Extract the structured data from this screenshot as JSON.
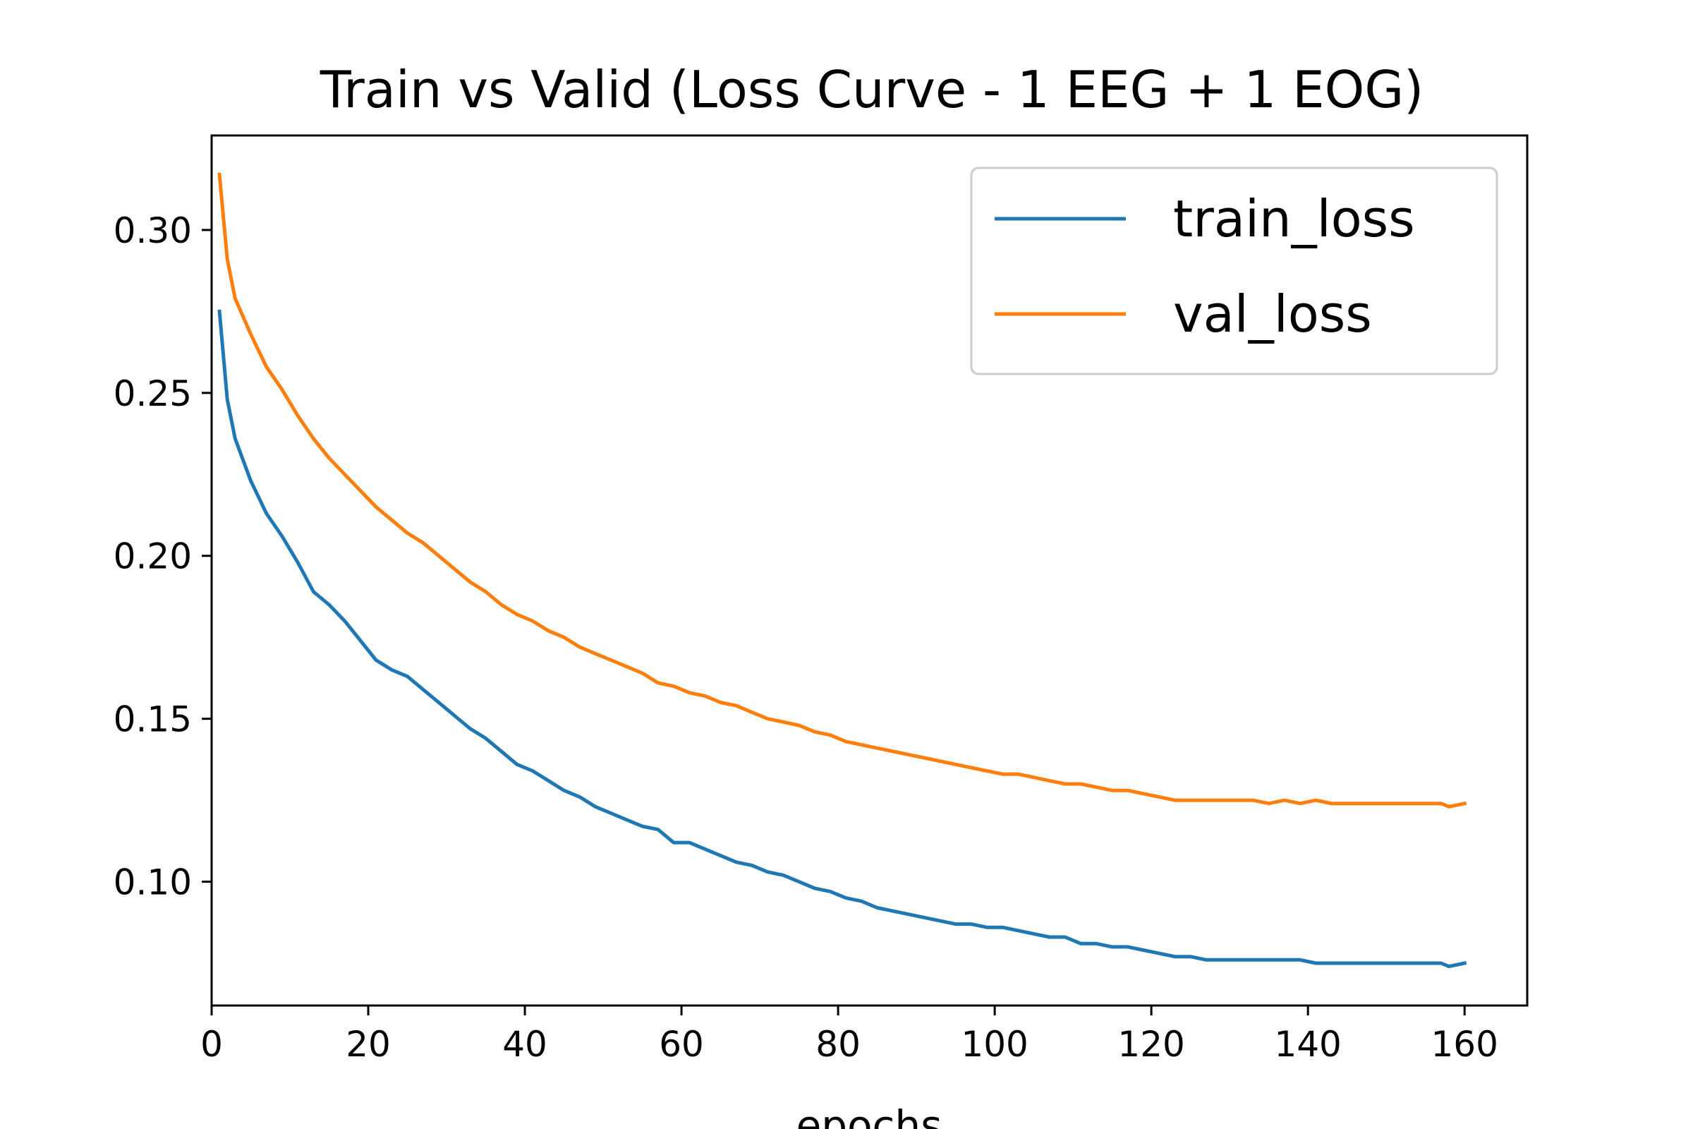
{
  "chart_data": {
    "type": "line",
    "title": "Train vs Valid  (Loss Curve - 1 EEG + 1 EOG)",
    "xlabel": "epochs",
    "ylabel": "",
    "xlim": [
      0,
      168
    ],
    "ylim": [
      0.062,
      0.329
    ],
    "xticks": [
      0,
      20,
      40,
      60,
      80,
      100,
      120,
      140,
      160
    ],
    "yticks": [
      0.1,
      0.15,
      0.2,
      0.25,
      0.3
    ],
    "ytick_labels": [
      "0.10",
      "0.15",
      "0.20",
      "0.25",
      "0.30"
    ],
    "grid": false,
    "legend_position": "top-right",
    "series": [
      {
        "name": "train_loss",
        "color": "#1f77b4",
        "points": [
          [
            1,
            0.275
          ],
          [
            2,
            0.248
          ],
          [
            3,
            0.236
          ],
          [
            5,
            0.223
          ],
          [
            7,
            0.213
          ],
          [
            9,
            0.206
          ],
          [
            11,
            0.198
          ],
          [
            13,
            0.189
          ],
          [
            15,
            0.185
          ],
          [
            17,
            0.18
          ],
          [
            19,
            0.174
          ],
          [
            21,
            0.168
          ],
          [
            23,
            0.165
          ],
          [
            25,
            0.163
          ],
          [
            27,
            0.159
          ],
          [
            29,
            0.155
          ],
          [
            31,
            0.151
          ],
          [
            33,
            0.147
          ],
          [
            35,
            0.144
          ],
          [
            37,
            0.14
          ],
          [
            39,
            0.136
          ],
          [
            41,
            0.134
          ],
          [
            43,
            0.131
          ],
          [
            45,
            0.128
          ],
          [
            47,
            0.126
          ],
          [
            49,
            0.123
          ],
          [
            51,
            0.121
          ],
          [
            53,
            0.119
          ],
          [
            55,
            0.117
          ],
          [
            57,
            0.116
          ],
          [
            59,
            0.112
          ],
          [
            61,
            0.112
          ],
          [
            63,
            0.11
          ],
          [
            65,
            0.108
          ],
          [
            67,
            0.106
          ],
          [
            69,
            0.105
          ],
          [
            71,
            0.103
          ],
          [
            73,
            0.102
          ],
          [
            75,
            0.1
          ],
          [
            77,
            0.098
          ],
          [
            79,
            0.097
          ],
          [
            81,
            0.095
          ],
          [
            83,
            0.094
          ],
          [
            85,
            0.092
          ],
          [
            87,
            0.091
          ],
          [
            89,
            0.09
          ],
          [
            91,
            0.089
          ],
          [
            93,
            0.088
          ],
          [
            95,
            0.087
          ],
          [
            97,
            0.087
          ],
          [
            99,
            0.086
          ],
          [
            101,
            0.086
          ],
          [
            103,
            0.085
          ],
          [
            105,
            0.084
          ],
          [
            107,
            0.083
          ],
          [
            109,
            0.083
          ],
          [
            111,
            0.081
          ],
          [
            113,
            0.081
          ],
          [
            115,
            0.08
          ],
          [
            117,
            0.08
          ],
          [
            119,
            0.079
          ],
          [
            121,
            0.078
          ],
          [
            123,
            0.077
          ],
          [
            125,
            0.077
          ],
          [
            127,
            0.076
          ],
          [
            129,
            0.076
          ],
          [
            131,
            0.076
          ],
          [
            133,
            0.076
          ],
          [
            135,
            0.076
          ],
          [
            137,
            0.076
          ],
          [
            139,
            0.076
          ],
          [
            141,
            0.075
          ],
          [
            143,
            0.075
          ],
          [
            145,
            0.075
          ],
          [
            147,
            0.075
          ],
          [
            149,
            0.075
          ],
          [
            151,
            0.075
          ],
          [
            153,
            0.075
          ],
          [
            155,
            0.075
          ],
          [
            157,
            0.075
          ],
          [
            158,
            0.074
          ],
          [
            160,
            0.075
          ]
        ]
      },
      {
        "name": "val_loss",
        "color": "#ff7f0e",
        "points": [
          [
            1,
            0.317
          ],
          [
            2,
            0.291
          ],
          [
            3,
            0.279
          ],
          [
            5,
            0.268
          ],
          [
            7,
            0.258
          ],
          [
            9,
            0.251
          ],
          [
            11,
            0.243
          ],
          [
            13,
            0.236
          ],
          [
            15,
            0.23
          ],
          [
            17,
            0.225
          ],
          [
            19,
            0.22
          ],
          [
            21,
            0.215
          ],
          [
            23,
            0.211
          ],
          [
            25,
            0.207
          ],
          [
            27,
            0.204
          ],
          [
            29,
            0.2
          ],
          [
            31,
            0.196
          ],
          [
            33,
            0.192
          ],
          [
            35,
            0.189
          ],
          [
            37,
            0.185
          ],
          [
            39,
            0.182
          ],
          [
            41,
            0.18
          ],
          [
            43,
            0.177
          ],
          [
            45,
            0.175
          ],
          [
            47,
            0.172
          ],
          [
            49,
            0.17
          ],
          [
            51,
            0.168
          ],
          [
            53,
            0.166
          ],
          [
            55,
            0.164
          ],
          [
            57,
            0.161
          ],
          [
            59,
            0.16
          ],
          [
            61,
            0.158
          ],
          [
            63,
            0.157
          ],
          [
            65,
            0.155
          ],
          [
            67,
            0.154
          ],
          [
            69,
            0.152
          ],
          [
            71,
            0.15
          ],
          [
            73,
            0.149
          ],
          [
            75,
            0.148
          ],
          [
            77,
            0.146
          ],
          [
            79,
            0.145
          ],
          [
            81,
            0.143
          ],
          [
            83,
            0.142
          ],
          [
            85,
            0.141
          ],
          [
            87,
            0.14
          ],
          [
            89,
            0.139
          ],
          [
            91,
            0.138
          ],
          [
            93,
            0.137
          ],
          [
            95,
            0.136
          ],
          [
            97,
            0.135
          ],
          [
            99,
            0.134
          ],
          [
            101,
            0.133
          ],
          [
            103,
            0.133
          ],
          [
            105,
            0.132
          ],
          [
            107,
            0.131
          ],
          [
            109,
            0.13
          ],
          [
            111,
            0.13
          ],
          [
            113,
            0.129
          ],
          [
            115,
            0.128
          ],
          [
            117,
            0.128
          ],
          [
            119,
            0.127
          ],
          [
            121,
            0.126
          ],
          [
            123,
            0.125
          ],
          [
            125,
            0.125
          ],
          [
            127,
            0.125
          ],
          [
            129,
            0.125
          ],
          [
            131,
            0.125
          ],
          [
            133,
            0.125
          ],
          [
            135,
            0.124
          ],
          [
            137,
            0.125
          ],
          [
            139,
            0.124
          ],
          [
            141,
            0.125
          ],
          [
            143,
            0.124
          ],
          [
            145,
            0.124
          ],
          [
            147,
            0.124
          ],
          [
            149,
            0.124
          ],
          [
            151,
            0.124
          ],
          [
            153,
            0.124
          ],
          [
            155,
            0.124
          ],
          [
            157,
            0.124
          ],
          [
            158,
            0.123
          ],
          [
            160,
            0.124
          ]
        ]
      }
    ]
  }
}
